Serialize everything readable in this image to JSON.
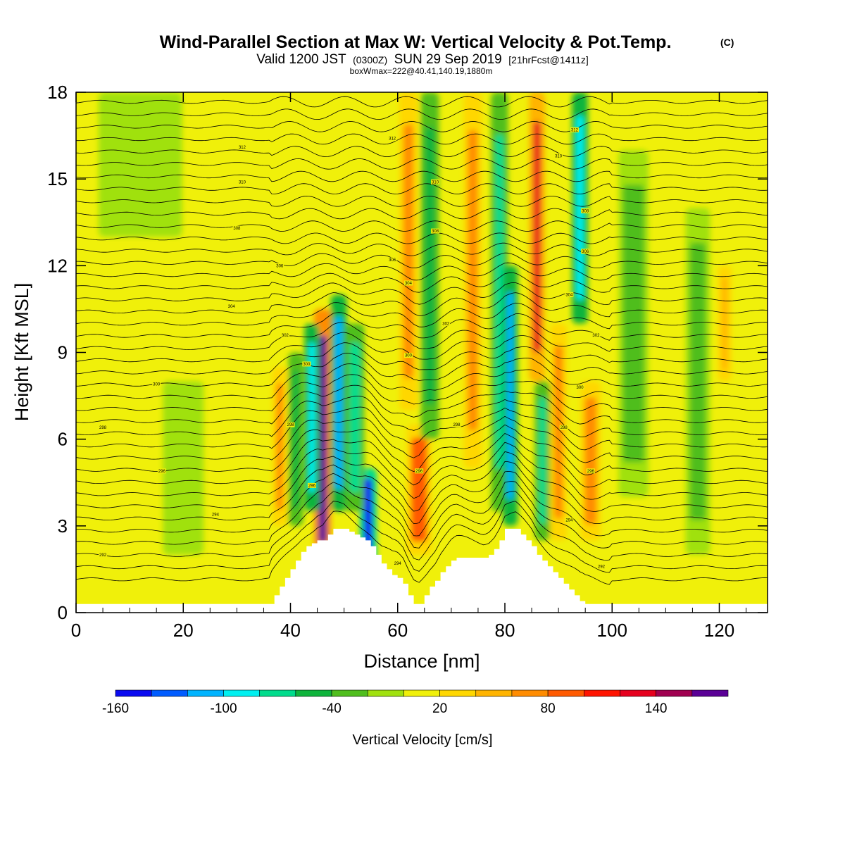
{
  "title": {
    "main": "Wind-Parallel Section at Max W: Vertical Velocity & Pot.Temp.",
    "copyright": "(C)",
    "valid_prefix": "Valid 1200 JST",
    "valid_utc": "(0300Z)",
    "valid_date": "SUN 29 Sep 2019",
    "forecast": "[21hrFcst@1411z]",
    "boxinfo": "boxWmax=222@40.41,140.19,1880m"
  },
  "chart_data": {
    "type": "heatmap",
    "title": "Wind-Parallel Section at Max W: Vertical Velocity & Pot.Temp.",
    "xlabel": "Distance [nm]",
    "ylabel": "Height [Kft MSL]",
    "xlim": [
      0,
      129
    ],
    "ylim": [
      0,
      18
    ],
    "xticks": [
      0,
      20,
      40,
      60,
      80,
      100,
      120
    ],
    "xtick_labels": [
      "0",
      "20",
      "40",
      "60",
      "80",
      "100",
      "120"
    ],
    "yticks": [
      0,
      3,
      6,
      9,
      12,
      15,
      18
    ],
    "ytick_labels": [
      "0",
      "3",
      "6",
      "9",
      "12",
      "15",
      "18"
    ],
    "colorbar": {
      "title": "Vertical Velocity [cm/s]",
      "bins": [
        -160,
        -140,
        -120,
        -100,
        -80,
        -60,
        -40,
        -20,
        0,
        20,
        40,
        60,
        80,
        100,
        120,
        140,
        160,
        180
      ],
      "tick_values": [
        -160,
        -100,
        -40,
        20,
        80,
        140
      ],
      "tick_labels": [
        "-160",
        "-100",
        "-40",
        "20",
        "80",
        "140"
      ],
      "colors": [
        "#0a0af0",
        "#005cff",
        "#00b4ff",
        "#00f0f0",
        "#00dc8c",
        "#0fb43c",
        "#50be1e",
        "#a0e10f",
        "#f0f00a",
        "#ffd700",
        "#ffb400",
        "#ff8c00",
        "#ff5a00",
        "#ff1400",
        "#e6001e",
        "#a00050",
        "#5a0096"
      ]
    },
    "terrain_profile": {
      "distance_nm": [
        0,
        36,
        37,
        38,
        39,
        40,
        41,
        42,
        43,
        44,
        45,
        46,
        47,
        48,
        49,
        50,
        51,
        52,
        53,
        54,
        55,
        56,
        57,
        58,
        59,
        60,
        61,
        62,
        63,
        64,
        65,
        66,
        67,
        68,
        69,
        70,
        71,
        72,
        73,
        74,
        75,
        76,
        77,
        78,
        79,
        80,
        81,
        82,
        83,
        84,
        85,
        86,
        87,
        88,
        89,
        90,
        91,
        92,
        93,
        94,
        95,
        129
      ],
      "height_kft": [
        0.3,
        0.3,
        0.6,
        0.9,
        1.2,
        1.5,
        1.8,
        2.1,
        2.3,
        2.4,
        2.5,
        2.5,
        2.7,
        2.9,
        2.9,
        2.9,
        2.8,
        2.7,
        2.6,
        2.5,
        2.3,
        2.0,
        1.7,
        1.5,
        1.3,
        1.2,
        1.0,
        0.6,
        0.3,
        0.3,
        0.6,
        0.9,
        1.1,
        1.4,
        1.6,
        1.8,
        1.9,
        1.9,
        1.9,
        1.9,
        1.9,
        1.9,
        2.0,
        2.2,
        2.5,
        2.9,
        2.9,
        2.9,
        2.7,
        2.5,
        2.3,
        2.0,
        1.8,
        1.6,
        1.4,
        1.2,
        1.0,
        0.8,
        0.6,
        0.4,
        0.3,
        0.3
      ]
    },
    "velocity_features": [
      {
        "x": 46,
        "width": 1.6,
        "y_from": 1.5,
        "y_to": 10.5,
        "value": 160
      },
      {
        "x": 44,
        "width": 1.2,
        "y_from": 3.5,
        "y_to": 10.0,
        "value": -90
      },
      {
        "x": 49,
        "width": 1.4,
        "y_from": 3.5,
        "y_to": 11.0,
        "value": -110
      },
      {
        "x": 54.5,
        "width": 1.6,
        "y_from": 1.5,
        "y_to": 5.0,
        "value": -150
      },
      {
        "x": 52,
        "width": 2.0,
        "y_from": 3.5,
        "y_to": 10.0,
        "value": -70
      },
      {
        "x": 38,
        "width": 1.2,
        "y_from": 3.0,
        "y_to": 8.5,
        "value": 70
      },
      {
        "x": 41,
        "width": 1.2,
        "y_from": 3.0,
        "y_to": 9.0,
        "value": -50
      },
      {
        "x": 64,
        "width": 3.0,
        "y_from": 2.0,
        "y_to": 6.5,
        "value": 80
      },
      {
        "x": 62,
        "width": 1.8,
        "y_from": 7.0,
        "y_to": 18.0,
        "value": 70
      },
      {
        "x": 66,
        "width": 1.8,
        "y_from": 6.0,
        "y_to": 18.0,
        "value": -50
      },
      {
        "x": 74,
        "width": 1.8,
        "y_from": 5.0,
        "y_to": 18.0,
        "value": 60
      },
      {
        "x": 79,
        "width": 1.6,
        "y_from": 3.5,
        "y_to": 18.0,
        "value": -70
      },
      {
        "x": 81,
        "width": 1.2,
        "y_from": 3.0,
        "y_to": 12.0,
        "value": -110
      },
      {
        "x": 86,
        "width": 1.4,
        "y_from": 8.0,
        "y_to": 18.0,
        "value": 120
      },
      {
        "x": 87,
        "width": 1.3,
        "y_from": 2.5,
        "y_to": 8.0,
        "value": -80
      },
      {
        "x": 90,
        "width": 1.6,
        "y_from": 2.5,
        "y_to": 10.0,
        "value": 70
      },
      {
        "x": 94,
        "width": 1.4,
        "y_from": 10.0,
        "y_to": 18.0,
        "value": -100
      },
      {
        "x": 96,
        "width": 2.2,
        "y_from": 2.5,
        "y_to": 8.0,
        "value": 60
      },
      {
        "x": 121,
        "width": 1.0,
        "y_from": 8.0,
        "y_to": 12.0,
        "value": 50
      },
      {
        "x": 12,
        "width": 14,
        "y_from": 13.0,
        "y_to": 18.0,
        "value": -20
      },
      {
        "x": 20,
        "width": 6,
        "y_from": 2.0,
        "y_to": 8.0,
        "value": -15
      },
      {
        "x": 104,
        "width": 4,
        "y_from": 4.0,
        "y_to": 16.0,
        "value": -25
      },
      {
        "x": 116,
        "width": 3,
        "y_from": 2.0,
        "y_to": 14.0,
        "value": -25
      }
    ],
    "theta_contour_labels": [
      {
        "x": 5,
        "y": 2.0,
        "text": "292"
      },
      {
        "x": 26,
        "y": 3.4,
        "text": "294"
      },
      {
        "x": 16,
        "y": 4.9,
        "text": "296"
      },
      {
        "x": 5,
        "y": 6.4,
        "text": "298"
      },
      {
        "x": 15,
        "y": 7.9,
        "text": "300"
      },
      {
        "x": 29,
        "y": 10.6,
        "text": "304"
      },
      {
        "x": 38,
        "y": 12.0,
        "text": "306"
      },
      {
        "x": 30,
        "y": 13.3,
        "text": "308"
      },
      {
        "x": 31,
        "y": 14.9,
        "text": "310"
      },
      {
        "x": 31,
        "y": 16.1,
        "text": "312"
      },
      {
        "x": 59,
        "y": 16.4,
        "text": "312"
      },
      {
        "x": 67,
        "y": 14.9,
        "text": "310"
      },
      {
        "x": 67,
        "y": 13.2,
        "text": "308"
      },
      {
        "x": 59,
        "y": 12.2,
        "text": "306"
      },
      {
        "x": 62,
        "y": 11.4,
        "text": "304"
      },
      {
        "x": 69,
        "y": 10.0,
        "text": "302"
      },
      {
        "x": 62,
        "y": 8.9,
        "text": "300"
      },
      {
        "x": 71,
        "y": 6.5,
        "text": "298"
      },
      {
        "x": 64,
        "y": 4.9,
        "text": "296"
      },
      {
        "x": 60,
        "y": 1.7,
        "text": "294"
      },
      {
        "x": 90,
        "y": 15.8,
        "text": "310"
      },
      {
        "x": 93,
        "y": 16.7,
        "text": "312"
      },
      {
        "x": 95,
        "y": 13.9,
        "text": "308"
      },
      {
        "x": 95,
        "y": 12.5,
        "text": "306"
      },
      {
        "x": 92,
        "y": 11.0,
        "text": "304"
      },
      {
        "x": 97,
        "y": 9.6,
        "text": "302"
      },
      {
        "x": 94,
        "y": 7.8,
        "text": "300"
      },
      {
        "x": 91,
        "y": 6.4,
        "text": "298"
      },
      {
        "x": 96,
        "y": 4.9,
        "text": "296"
      },
      {
        "x": 92,
        "y": 3.2,
        "text": "294"
      },
      {
        "x": 98,
        "y": 1.6,
        "text": "292"
      },
      {
        "x": 39,
        "y": 9.6,
        "text": "302"
      },
      {
        "x": 43,
        "y": 8.6,
        "text": "300"
      },
      {
        "x": 40,
        "y": 6.5,
        "text": "298"
      },
      {
        "x": 44,
        "y": 4.4,
        "text": "296"
      }
    ]
  }
}
